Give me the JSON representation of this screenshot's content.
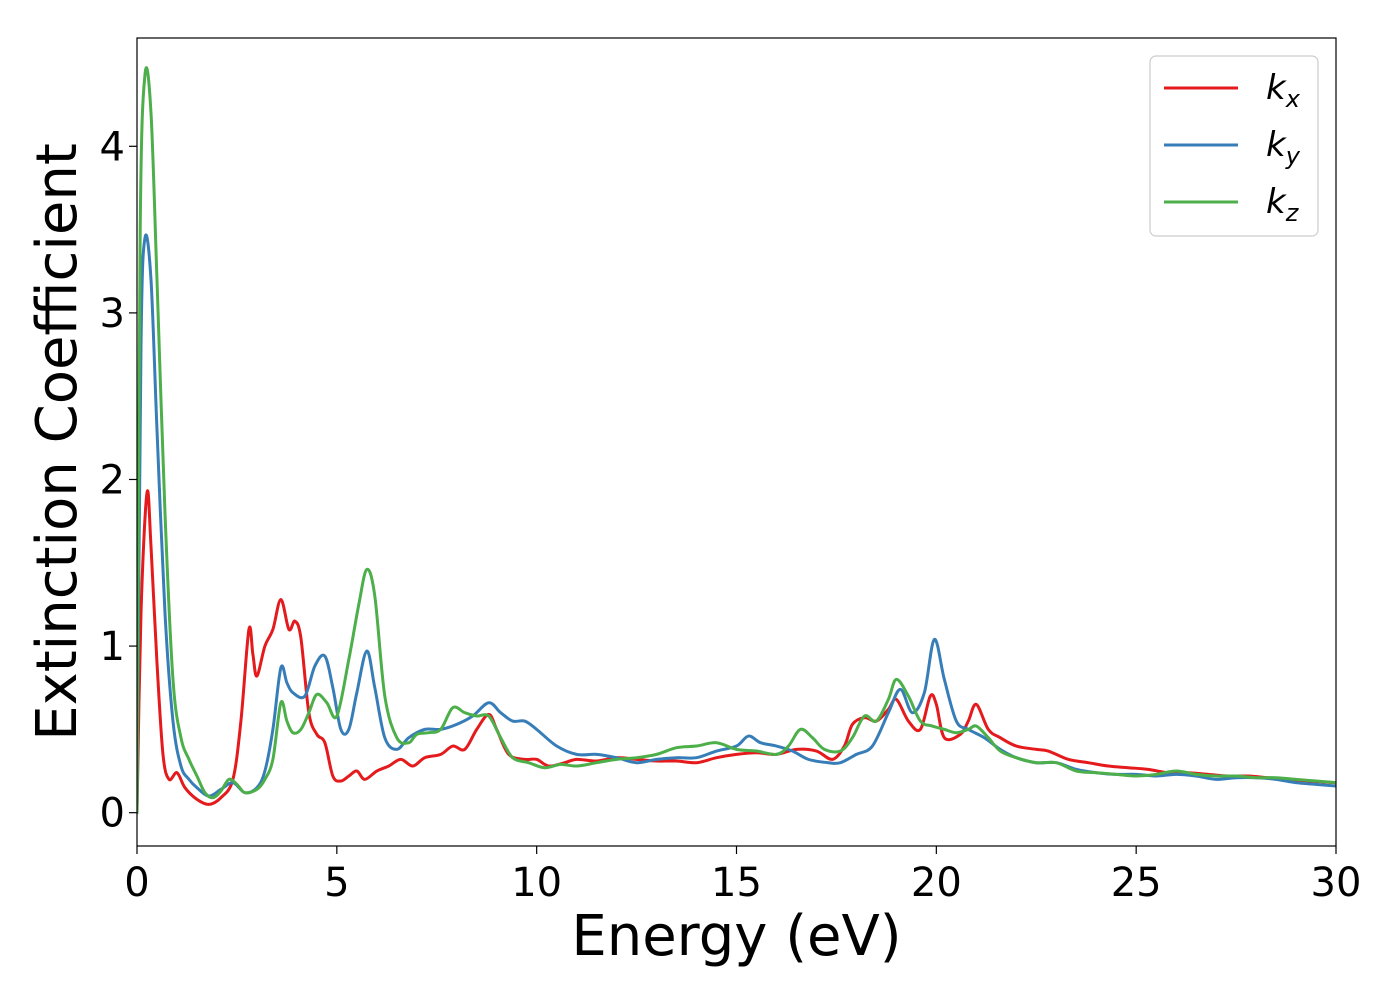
{
  "chart_data": {
    "type": "line",
    "title": "",
    "xlabel": "Energy (eV)",
    "ylabel": "Extinction Coefficient",
    "xlim": [
      0,
      30
    ],
    "ylim": [
      -0.2,
      4.65
    ],
    "x_ticks": [
      0,
      5,
      10,
      15,
      20,
      25,
      30
    ],
    "y_ticks": [
      0,
      1,
      2,
      3,
      4
    ],
    "grid": false,
    "legend_position": "top-right",
    "series": [
      {
        "name": "k",
        "subscript": "x",
        "color": "#e41a1c",
        "points": [
          [
            0.0,
            0.0
          ],
          [
            0.1,
            1.2
          ],
          [
            0.25,
            1.92
          ],
          [
            0.35,
            1.6
          ],
          [
            0.5,
            0.9
          ],
          [
            0.65,
            0.35
          ],
          [
            0.8,
            0.2
          ],
          [
            1.0,
            0.24
          ],
          [
            1.2,
            0.15
          ],
          [
            1.5,
            0.08
          ],
          [
            1.8,
            0.05
          ],
          [
            2.1,
            0.09
          ],
          [
            2.4,
            0.2
          ],
          [
            2.6,
            0.55
          ],
          [
            2.8,
            1.1
          ],
          [
            2.9,
            0.95
          ],
          [
            3.0,
            0.82
          ],
          [
            3.2,
            1.0
          ],
          [
            3.4,
            1.1
          ],
          [
            3.6,
            1.28
          ],
          [
            3.8,
            1.1
          ],
          [
            3.95,
            1.15
          ],
          [
            4.1,
            1.05
          ],
          [
            4.3,
            0.6
          ],
          [
            4.5,
            0.47
          ],
          [
            4.7,
            0.42
          ],
          [
            4.9,
            0.22
          ],
          [
            5.1,
            0.19
          ],
          [
            5.3,
            0.22
          ],
          [
            5.5,
            0.25
          ],
          [
            5.7,
            0.2
          ],
          [
            6.0,
            0.25
          ],
          [
            6.3,
            0.28
          ],
          [
            6.6,
            0.32
          ],
          [
            6.9,
            0.28
          ],
          [
            7.2,
            0.33
          ],
          [
            7.6,
            0.35
          ],
          [
            7.9,
            0.4
          ],
          [
            8.2,
            0.38
          ],
          [
            8.5,
            0.5
          ],
          [
            8.8,
            0.59
          ],
          [
            9.0,
            0.5
          ],
          [
            9.3,
            0.35
          ],
          [
            9.7,
            0.32
          ],
          [
            10.0,
            0.32
          ],
          [
            10.3,
            0.28
          ],
          [
            10.7,
            0.3
          ],
          [
            11.0,
            0.32
          ],
          [
            11.5,
            0.31
          ],
          [
            12.0,
            0.33
          ],
          [
            12.5,
            0.32
          ],
          [
            13.0,
            0.31
          ],
          [
            13.5,
            0.31
          ],
          [
            14.0,
            0.3
          ],
          [
            14.5,
            0.33
          ],
          [
            15.0,
            0.35
          ],
          [
            15.5,
            0.36
          ],
          [
            16.0,
            0.35
          ],
          [
            16.5,
            0.38
          ],
          [
            17.0,
            0.37
          ],
          [
            17.4,
            0.32
          ],
          [
            17.7,
            0.4
          ],
          [
            17.9,
            0.53
          ],
          [
            18.2,
            0.57
          ],
          [
            18.5,
            0.55
          ],
          [
            18.8,
            0.62
          ],
          [
            19.0,
            0.68
          ],
          [
            19.3,
            0.55
          ],
          [
            19.6,
            0.5
          ],
          [
            19.85,
            0.7
          ],
          [
            20.0,
            0.65
          ],
          [
            20.2,
            0.45
          ],
          [
            20.6,
            0.47
          ],
          [
            20.8,
            0.55
          ],
          [
            21.0,
            0.65
          ],
          [
            21.3,
            0.5
          ],
          [
            21.6,
            0.45
          ],
          [
            22.0,
            0.4
          ],
          [
            22.5,
            0.38
          ],
          [
            22.8,
            0.37
          ],
          [
            23.3,
            0.32
          ],
          [
            23.8,
            0.3
          ],
          [
            24.3,
            0.28
          ],
          [
            24.8,
            0.27
          ],
          [
            25.3,
            0.26
          ],
          [
            25.8,
            0.24
          ],
          [
            26.3,
            0.24
          ],
          [
            26.8,
            0.23
          ],
          [
            27.3,
            0.22
          ],
          [
            27.8,
            0.22
          ],
          [
            28.3,
            0.21
          ],
          [
            28.8,
            0.2
          ],
          [
            29.3,
            0.19
          ],
          [
            30.0,
            0.18
          ]
        ]
      },
      {
        "name": "k",
        "subscript": "y",
        "color": "#377eb8",
        "points": [
          [
            0.0,
            0.0
          ],
          [
            0.1,
            2.8
          ],
          [
            0.2,
            3.45
          ],
          [
            0.35,
            3.2
          ],
          [
            0.5,
            2.3
          ],
          [
            0.7,
            1.2
          ],
          [
            0.9,
            0.55
          ],
          [
            1.1,
            0.28
          ],
          [
            1.3,
            0.2
          ],
          [
            1.5,
            0.15
          ],
          [
            1.8,
            0.1
          ],
          [
            2.1,
            0.14
          ],
          [
            2.4,
            0.18
          ],
          [
            2.7,
            0.12
          ],
          [
            3.0,
            0.15
          ],
          [
            3.2,
            0.25
          ],
          [
            3.4,
            0.5
          ],
          [
            3.6,
            0.87
          ],
          [
            3.75,
            0.78
          ],
          [
            3.9,
            0.72
          ],
          [
            4.2,
            0.7
          ],
          [
            4.45,
            0.88
          ],
          [
            4.7,
            0.94
          ],
          [
            4.9,
            0.75
          ],
          [
            5.1,
            0.5
          ],
          [
            5.3,
            0.5
          ],
          [
            5.5,
            0.72
          ],
          [
            5.75,
            0.97
          ],
          [
            5.95,
            0.75
          ],
          [
            6.2,
            0.45
          ],
          [
            6.5,
            0.38
          ],
          [
            6.8,
            0.45
          ],
          [
            7.2,
            0.5
          ],
          [
            7.6,
            0.5
          ],
          [
            8.0,
            0.53
          ],
          [
            8.4,
            0.58
          ],
          [
            8.8,
            0.66
          ],
          [
            9.1,
            0.6
          ],
          [
            9.4,
            0.55
          ],
          [
            9.7,
            0.55
          ],
          [
            10.0,
            0.5
          ],
          [
            10.5,
            0.4
          ],
          [
            11.0,
            0.35
          ],
          [
            11.5,
            0.35
          ],
          [
            12.0,
            0.33
          ],
          [
            12.5,
            0.3
          ],
          [
            13.0,
            0.32
          ],
          [
            13.5,
            0.33
          ],
          [
            14.0,
            0.33
          ],
          [
            14.5,
            0.37
          ],
          [
            15.0,
            0.4
          ],
          [
            15.3,
            0.46
          ],
          [
            15.6,
            0.42
          ],
          [
            16.0,
            0.4
          ],
          [
            16.4,
            0.37
          ],
          [
            16.8,
            0.32
          ],
          [
            17.3,
            0.3
          ],
          [
            17.6,
            0.3
          ],
          [
            18.0,
            0.35
          ],
          [
            18.4,
            0.4
          ],
          [
            18.8,
            0.6
          ],
          [
            19.1,
            0.74
          ],
          [
            19.4,
            0.6
          ],
          [
            19.7,
            0.72
          ],
          [
            19.95,
            1.04
          ],
          [
            20.2,
            0.8
          ],
          [
            20.5,
            0.55
          ],
          [
            20.8,
            0.5
          ],
          [
            21.2,
            0.45
          ],
          [
            21.6,
            0.38
          ],
          [
            22.0,
            0.33
          ],
          [
            22.5,
            0.3
          ],
          [
            23.0,
            0.3
          ],
          [
            23.5,
            0.26
          ],
          [
            24.0,
            0.24
          ],
          [
            24.5,
            0.23
          ],
          [
            25.0,
            0.23
          ],
          [
            25.5,
            0.22
          ],
          [
            26.0,
            0.23
          ],
          [
            26.5,
            0.22
          ],
          [
            27.0,
            0.2
          ],
          [
            27.5,
            0.21
          ],
          [
            28.0,
            0.21
          ],
          [
            28.5,
            0.2
          ],
          [
            29.0,
            0.18
          ],
          [
            29.5,
            0.17
          ],
          [
            30.0,
            0.16
          ]
        ]
      },
      {
        "name": "k",
        "subscript": "z",
        "color": "#4daf4a",
        "points": [
          [
            0.0,
            0.0
          ],
          [
            0.08,
            3.5
          ],
          [
            0.2,
            4.43
          ],
          [
            0.35,
            4.2
          ],
          [
            0.5,
            3.2
          ],
          [
            0.7,
            1.8
          ],
          [
            0.9,
            0.8
          ],
          [
            1.1,
            0.45
          ],
          [
            1.3,
            0.32
          ],
          [
            1.5,
            0.22
          ],
          [
            1.7,
            0.12
          ],
          [
            1.9,
            0.09
          ],
          [
            2.1,
            0.13
          ],
          [
            2.3,
            0.2
          ],
          [
            2.5,
            0.17
          ],
          [
            2.7,
            0.12
          ],
          [
            3.0,
            0.14
          ],
          [
            3.2,
            0.2
          ],
          [
            3.4,
            0.32
          ],
          [
            3.6,
            0.66
          ],
          [
            3.75,
            0.55
          ],
          [
            3.9,
            0.48
          ],
          [
            4.1,
            0.5
          ],
          [
            4.3,
            0.6
          ],
          [
            4.5,
            0.71
          ],
          [
            4.75,
            0.66
          ],
          [
            5.0,
            0.58
          ],
          [
            5.3,
            0.92
          ],
          [
            5.55,
            1.25
          ],
          [
            5.75,
            1.46
          ],
          [
            5.95,
            1.3
          ],
          [
            6.2,
            0.7
          ],
          [
            6.5,
            0.45
          ],
          [
            6.8,
            0.42
          ],
          [
            7.0,
            0.47
          ],
          [
            7.3,
            0.48
          ],
          [
            7.6,
            0.5
          ],
          [
            7.9,
            0.63
          ],
          [
            8.2,
            0.6
          ],
          [
            8.5,
            0.58
          ],
          [
            8.8,
            0.58
          ],
          [
            9.1,
            0.45
          ],
          [
            9.4,
            0.33
          ],
          [
            9.8,
            0.3
          ],
          [
            10.2,
            0.27
          ],
          [
            10.6,
            0.29
          ],
          [
            11.0,
            0.28
          ],
          [
            11.5,
            0.3
          ],
          [
            12.0,
            0.32
          ],
          [
            12.5,
            0.33
          ],
          [
            13.0,
            0.35
          ],
          [
            13.5,
            0.39
          ],
          [
            14.0,
            0.4
          ],
          [
            14.5,
            0.42
          ],
          [
            15.0,
            0.38
          ],
          [
            15.5,
            0.37
          ],
          [
            16.0,
            0.35
          ],
          [
            16.3,
            0.4
          ],
          [
            16.6,
            0.5
          ],
          [
            16.9,
            0.45
          ],
          [
            17.2,
            0.38
          ],
          [
            17.6,
            0.37
          ],
          [
            17.9,
            0.45
          ],
          [
            18.2,
            0.58
          ],
          [
            18.5,
            0.55
          ],
          [
            18.8,
            0.68
          ],
          [
            19.0,
            0.8
          ],
          [
            19.3,
            0.7
          ],
          [
            19.6,
            0.55
          ],
          [
            19.9,
            0.52
          ],
          [
            20.2,
            0.5
          ],
          [
            20.5,
            0.48
          ],
          [
            20.8,
            0.5
          ],
          [
            21.0,
            0.52
          ],
          [
            21.3,
            0.45
          ],
          [
            21.6,
            0.37
          ],
          [
            22.0,
            0.33
          ],
          [
            22.5,
            0.3
          ],
          [
            23.0,
            0.3
          ],
          [
            23.5,
            0.25
          ],
          [
            24.0,
            0.24
          ],
          [
            24.5,
            0.23
          ],
          [
            25.0,
            0.22
          ],
          [
            25.5,
            0.23
          ],
          [
            26.0,
            0.25
          ],
          [
            26.5,
            0.23
          ],
          [
            27.0,
            0.22
          ],
          [
            27.5,
            0.22
          ],
          [
            28.0,
            0.21
          ],
          [
            28.5,
            0.21
          ],
          [
            29.0,
            0.2
          ],
          [
            29.5,
            0.19
          ],
          [
            30.0,
            0.18
          ]
        ]
      }
    ]
  }
}
